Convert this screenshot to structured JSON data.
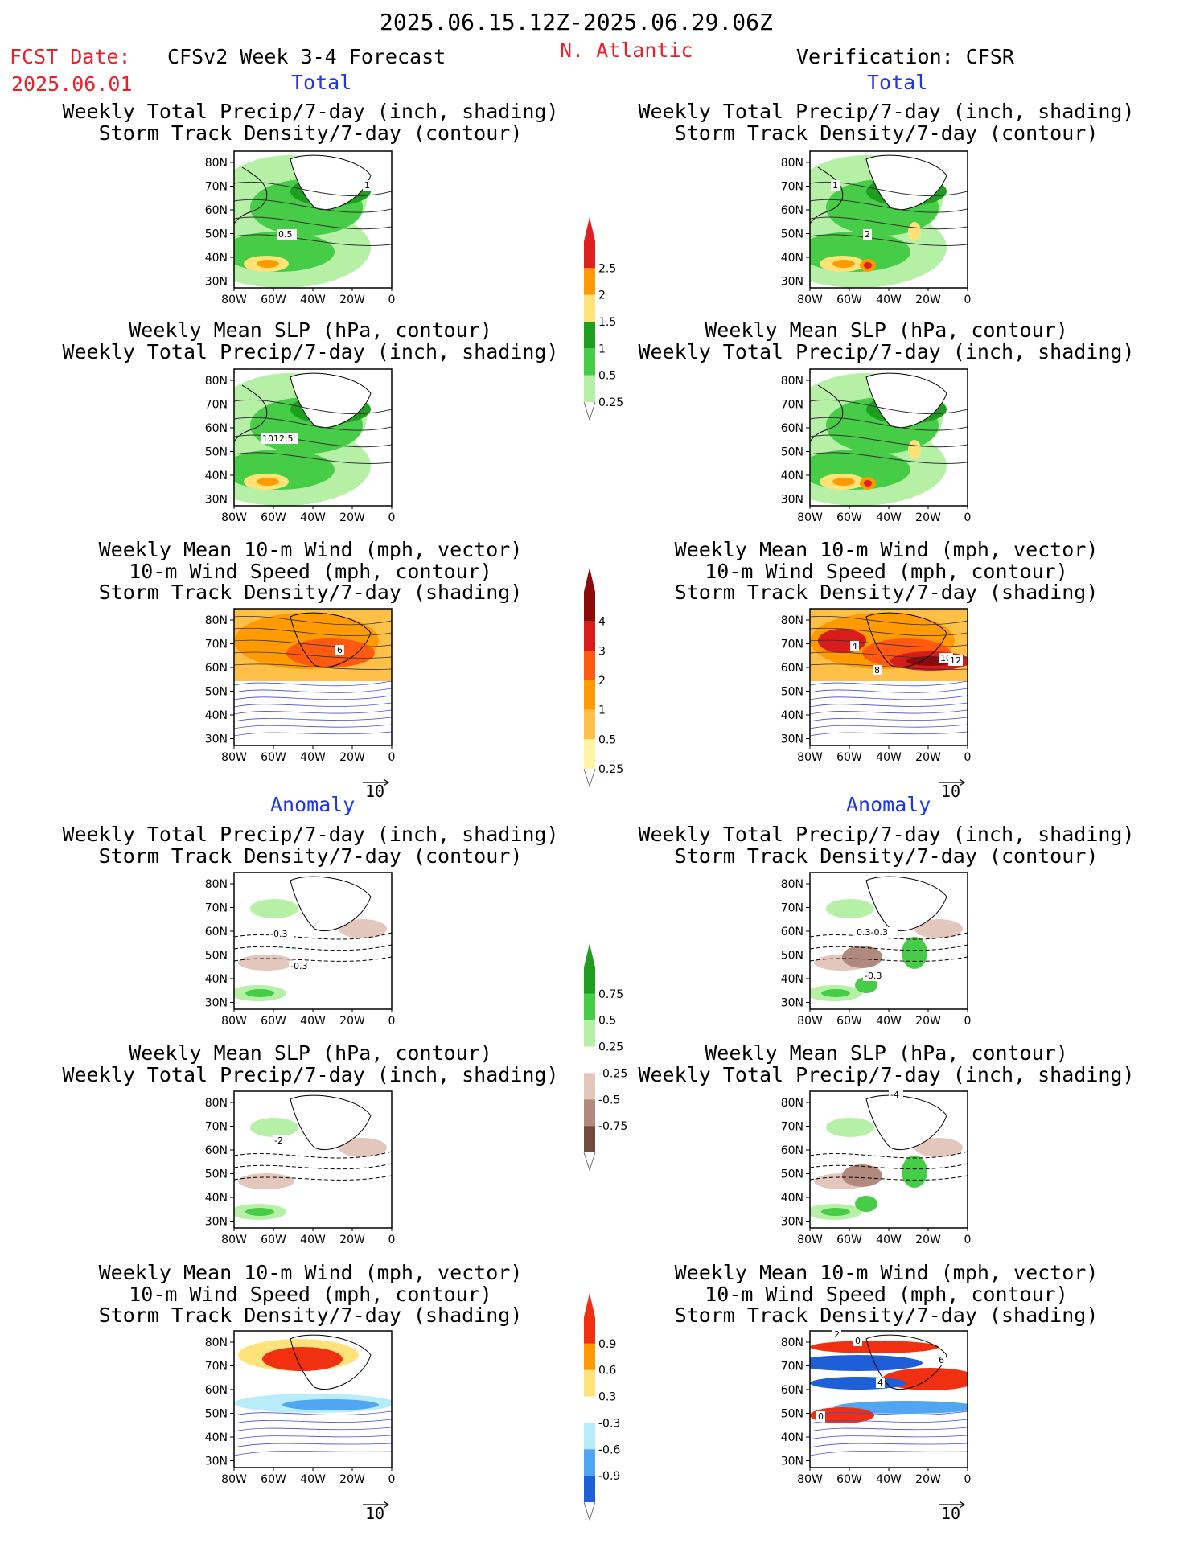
{
  "header": {
    "period": "2025.06.15.12Z-2025.06.29.06Z",
    "fcst_label": "FCST Date:",
    "fcst_date": "2025.06.01",
    "model": "CFSv2 Week 3-4 Forecast",
    "region": "N. Atlantic",
    "verification": "Verification: CFSR"
  },
  "sections": {
    "total": "Total",
    "anomaly": "Anomaly"
  },
  "titles": {
    "precip_storm": [
      "Weekly Total Precip/7-day (inch, shading)",
      "Storm Track Density/7-day (contour)"
    ],
    "slp_precip": [
      "Weekly Mean SLP (hPa, contour)",
      "Weekly Total Precip/7-day (inch, shading)"
    ],
    "wind_storm": [
      "Weekly Mean 10-m Wind (mph, vector)",
      "10-m Wind Speed (mph, contour)",
      "Storm Track Density/7-day (shading)"
    ]
  },
  "axes": {
    "x_ticks": [
      "80W",
      "60W",
      "40W",
      "20W",
      "0"
    ],
    "y_ticks": [
      "80N",
      "70N",
      "60N",
      "50N",
      "40N",
      "30N"
    ]
  },
  "vector_ref": "10",
  "colorbars": [
    {
      "id": "precip-total",
      "labels": [
        "2.5",
        "2",
        "1.5",
        "1",
        "0.5",
        "0.25"
      ],
      "colors": [
        "#e01f1f",
        "#ff9a00",
        "#ffe27a",
        "#1e9e1e",
        "#46cc46",
        "#b6f0a6"
      ]
    },
    {
      "id": "storm-total",
      "labels": [
        "4",
        "3",
        "2",
        "1",
        "0.5",
        "0.25"
      ],
      "colors": [
        "#8b0a0a",
        "#d81c1c",
        "#ff5a10",
        "#ff9a00",
        "#ffc04a",
        "#fff3a6"
      ]
    },
    {
      "id": "precip-anom",
      "labels": [
        "0.75",
        "0.5",
        "0.25",
        "-0.25",
        "-0.5",
        "-0.75"
      ],
      "colors": [
        "#1e9e1e",
        "#46cc46",
        "#b6f0a6",
        "#ffffff",
        "#e3c7bd",
        "#b08a7c",
        "#6e4b3c"
      ]
    },
    {
      "id": "storm-anom",
      "labels": [
        "0.9",
        "0.6",
        "0.3",
        "-0.3",
        "-0.6",
        "-0.9"
      ],
      "colors": [
        "#f03010",
        "#ff9a00",
        "#ffe27a",
        "#ffffff",
        "#b8ecfa",
        "#50a6f0",
        "#1e5fd8"
      ]
    }
  ],
  "contour_labels": {
    "a_fcst": "1",
    "a_fcst2": "0.5",
    "a_obs": "1",
    "a_obs2": "2",
    "b_fcst": "1012.5",
    "c_fcst": "6",
    "c_obs": "4",
    "c_obs2": "8",
    "c_obs3": "10",
    "c_obs4": "12",
    "d_fcst": "-0.3",
    "d_fcst2": "-0.3",
    "d_obs": "0.3-0.3",
    "d_obs2": "-0.3",
    "e_fcst": "-2",
    "e_obs": "-4",
    "f_obs": "0",
    "f_obs2": "6",
    "f_obs3": "4",
    "f_obs4": "0",
    "f_obs5": "2"
  }
}
